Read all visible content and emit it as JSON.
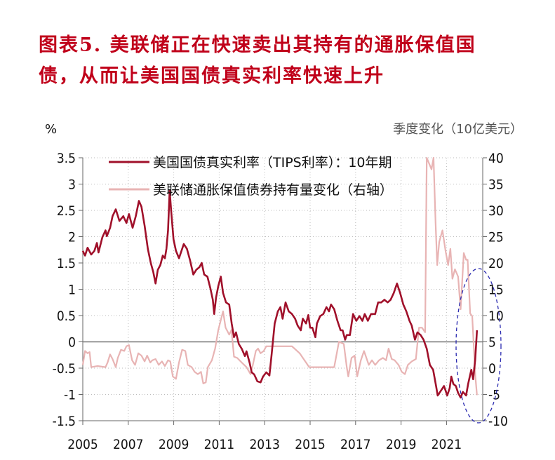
{
  "title": {
    "line1": "图表5.  美联储正在快速卖出其持有的通胀保值国",
    "line2": "债，从而让美国国债真实利率快速上升"
  },
  "chart_data": {
    "type": "line",
    "left_unit": "%",
    "right_unit": "季度变化（10亿美元）",
    "xlim": [
      2005,
      2022.6
    ],
    "ylim_left": [
      -1.5,
      3.5
    ],
    "ylim_right": [
      -10,
      40
    ],
    "x_ticks": [
      "2005",
      "2007",
      "2009",
      "2011",
      "2013",
      "2015",
      "2017",
      "2019",
      "2021"
    ],
    "y_ticks_left": [
      "3.5",
      "3",
      "2.5",
      "2",
      "1.5",
      "1",
      "0.5",
      "0",
      "-0.5",
      "-1",
      "-1.5"
    ],
    "y_ticks_right": [
      "40",
      "35",
      "30",
      "25",
      "20",
      "15",
      "10",
      "5",
      "0",
      "-5",
      "-10"
    ],
    "grid": true,
    "legend_placement": "top",
    "annotation": "dashed blue ellipse highlighting 2022",
    "series": [
      {
        "name": "美国国债真实利率（TIPS利率）：10年期",
        "axis": "left",
        "color": "#a0102a",
        "points": [
          [
            2005,
            1.73
          ],
          [
            2005.1,
            1.64
          ],
          [
            2005.21,
            1.79
          ],
          [
            2005.37,
            1.66
          ],
          [
            2005.51,
            1.73
          ],
          [
            2005.62,
            1.88
          ],
          [
            2005.69,
            1.7
          ],
          [
            2005.86,
            1.99
          ],
          [
            2006,
            2.12
          ],
          [
            2006.06,
            2.01
          ],
          [
            2006.2,
            2.17
          ],
          [
            2006.31,
            2.39
          ],
          [
            2006.45,
            2.52
          ],
          [
            2006.61,
            2.3
          ],
          [
            2006.78,
            2.39
          ],
          [
            2006.92,
            2.26
          ],
          [
            2007.03,
            2.43
          ],
          [
            2007.19,
            2.17
          ],
          [
            2007.33,
            2.39
          ],
          [
            2007.47,
            2.68
          ],
          [
            2007.58,
            2.57
          ],
          [
            2007.72,
            2.21
          ],
          [
            2007.86,
            1.77
          ],
          [
            2007.99,
            1.5
          ],
          [
            2008.1,
            1.33
          ],
          [
            2008.2,
            1.11
          ],
          [
            2008.3,
            1.37
          ],
          [
            2008.41,
            1.46
          ],
          [
            2008.52,
            1.64
          ],
          [
            2008.61,
            1.59
          ],
          [
            2008.68,
            1.77
          ],
          [
            2008.75,
            2.12
          ],
          [
            2008.82,
            2.88
          ],
          [
            2008.89,
            2.48
          ],
          [
            2008.99,
            1.95
          ],
          [
            2009.1,
            1.73
          ],
          [
            2009.23,
            1.59
          ],
          [
            2009.44,
            1.86
          ],
          [
            2009.58,
            1.77
          ],
          [
            2009.72,
            1.55
          ],
          [
            2009.86,
            1.28
          ],
          [
            2009.99,
            1.37
          ],
          [
            2010.13,
            1.42
          ],
          [
            2010.23,
            1.5
          ],
          [
            2010.34,
            1.28
          ],
          [
            2010.48,
            1.24
          ],
          [
            2010.61,
            1.02
          ],
          [
            2010.72,
            0.8
          ],
          [
            2010.78,
            0.53
          ],
          [
            2010.86,
            0.84
          ],
          [
            2010.96,
            1.06
          ],
          [
            2011.07,
            1.24
          ],
          [
            2011.17,
            0.93
          ],
          [
            2011.3,
            0.75
          ],
          [
            2011.44,
            0.71
          ],
          [
            2011.55,
            0.35
          ],
          [
            2011.65,
            0.09
          ],
          [
            2011.74,
            0.18
          ],
          [
            2011.86,
            -0.04
          ],
          [
            2011.99,
            -0.13
          ],
          [
            2012.13,
            -0.27
          ],
          [
            2012.2,
            -0.18
          ],
          [
            2012.34,
            -0.4
          ],
          [
            2012.43,
            -0.58
          ],
          [
            2012.54,
            -0.62
          ],
          [
            2012.68,
            -0.75
          ],
          [
            2012.82,
            -0.77
          ],
          [
            2012.93,
            -0.66
          ],
          [
            2013.07,
            -0.58
          ],
          [
            2013.21,
            -0.64
          ],
          [
            2013.3,
            -0.27
          ],
          [
            2013.44,
            0.35
          ],
          [
            2013.58,
            0.58
          ],
          [
            2013.69,
            0.66
          ],
          [
            2013.79,
            0.44
          ],
          [
            2013.92,
            0.75
          ],
          [
            2014.06,
            0.58
          ],
          [
            2014.2,
            0.53
          ],
          [
            2014.34,
            0.44
          ],
          [
            2014.45,
            0.31
          ],
          [
            2014.59,
            0.22
          ],
          [
            2014.68,
            0.44
          ],
          [
            2014.82,
            0.35
          ],
          [
            2014.92,
            0.51
          ],
          [
            2015,
            0.27
          ],
          [
            2015.1,
            0.27
          ],
          [
            2015.23,
            0.09
          ],
          [
            2015.3,
            0.35
          ],
          [
            2015.44,
            0.49
          ],
          [
            2015.58,
            0.53
          ],
          [
            2015.72,
            0.66
          ],
          [
            2015.83,
            0.58
          ],
          [
            2015.92,
            0.71
          ],
          [
            2016.06,
            0.62
          ],
          [
            2016.2,
            0.4
          ],
          [
            2016.34,
            0.22
          ],
          [
            2016.43,
            0.22
          ],
          [
            2016.54,
            0.04
          ],
          [
            2016.61,
            0.13
          ],
          [
            2016.75,
            0.13
          ],
          [
            2016.89,
            0.53
          ],
          [
            2017.03,
            0.4
          ],
          [
            2017.17,
            0.49
          ],
          [
            2017.3,
            0.4
          ],
          [
            2017.4,
            0.53
          ],
          [
            2017.54,
            0.4
          ],
          [
            2017.68,
            0.53
          ],
          [
            2017.86,
            0.53
          ],
          [
            2017.99,
            0.75
          ],
          [
            2018.13,
            0.75
          ],
          [
            2018.27,
            0.8
          ],
          [
            2018.41,
            0.75
          ],
          [
            2018.54,
            0.8
          ],
          [
            2018.68,
            0.93
          ],
          [
            2018.82,
            1.11
          ],
          [
            2018.96,
            0.93
          ],
          [
            2019.1,
            0.71
          ],
          [
            2019.23,
            0.58
          ],
          [
            2019.37,
            0.4
          ],
          [
            2019.47,
            0.31
          ],
          [
            2019.61,
            0.04
          ],
          [
            2019.72,
            0.18
          ],
          [
            2019.86,
            0.13
          ],
          [
            2019.99,
            0.04
          ],
          [
            2020.13,
            -0.13
          ],
          [
            2020.27,
            -0.44
          ],
          [
            2020.41,
            -0.53
          ],
          [
            2020.54,
            -0.84
          ],
          [
            2020.61,
            -1.02
          ],
          [
            2020.75,
            -0.93
          ],
          [
            2020.89,
            -0.84
          ],
          [
            2021.03,
            -1.02
          ],
          [
            2021.14,
            -0.88
          ],
          [
            2021.21,
            -0.66
          ],
          [
            2021.3,
            -0.8
          ],
          [
            2021.41,
            -0.84
          ],
          [
            2021.51,
            -0.97
          ],
          [
            2021.62,
            -1.06
          ],
          [
            2021.72,
            -0.95
          ],
          [
            2021.86,
            -1.02
          ],
          [
            2021.95,
            -0.8
          ],
          [
            2022.09,
            -0.53
          ],
          [
            2022.17,
            -0.71
          ],
          [
            2022.26,
            -0.35
          ],
          [
            2022.34,
            0.22
          ]
        ]
      },
      {
        "name": "美联储通胀保值债券持有量变化（右轴）",
        "axis": "right",
        "color": "#e8b4b4",
        "points": [
          [
            2005,
            0.62
          ],
          [
            2005.1,
            3.27
          ],
          [
            2005.21,
            2.83
          ],
          [
            2005.3,
            3.05
          ],
          [
            2005.37,
            0.18
          ],
          [
            2005.65,
            0.4
          ],
          [
            2006,
            0.18
          ],
          [
            2006.09,
            1.06
          ],
          [
            2006.2,
            2.61
          ],
          [
            2006.31,
            1.73
          ],
          [
            2006.45,
            0.18
          ],
          [
            2006.54,
            1.95
          ],
          [
            2006.68,
            3.5
          ],
          [
            2006.82,
            3.27
          ],
          [
            2006.92,
            4.16
          ],
          [
            2007.03,
            4.38
          ],
          [
            2007.17,
            1.5
          ],
          [
            2007.3,
            0.62
          ],
          [
            2007.44,
            2.83
          ],
          [
            2007.58,
            2.39
          ],
          [
            2007.72,
            1.28
          ],
          [
            2007.83,
            2.39
          ],
          [
            2007.97,
            1.06
          ],
          [
            2008.06,
            1.5
          ],
          [
            2008.2,
            1.73
          ],
          [
            2008.34,
            0.62
          ],
          [
            2008.48,
            1.28
          ],
          [
            2008.61,
            0.4
          ],
          [
            2008.75,
            1.5
          ],
          [
            2008.85,
            1.28
          ],
          [
            2008.96,
            -1.59
          ],
          [
            2009.1,
            -2.04
          ],
          [
            2009.23,
            1.06
          ],
          [
            2009.37,
            3.5
          ],
          [
            2009.51,
            3.27
          ],
          [
            2009.62,
            0.62
          ],
          [
            2009.79,
            0.18
          ],
          [
            2009.92,
            -0.71
          ],
          [
            2010.06,
            -1.15
          ],
          [
            2010.2,
            -0.71
          ],
          [
            2010.3,
            -2.92
          ],
          [
            2010.41,
            -2.7
          ],
          [
            2010.5,
            0.18
          ],
          [
            2010.68,
            1.5
          ],
          [
            2010.82,
            3.72
          ],
          [
            2010.96,
            7.26
          ],
          [
            2011.17,
            10.8
          ],
          [
            2011.28,
            7.7
          ],
          [
            2011.44,
            6.37
          ],
          [
            2011.54,
            7.26
          ],
          [
            2011.65,
            2.17
          ],
          [
            2011.79,
            1.95
          ],
          [
            2011.99,
            1.06
          ],
          [
            2012.2,
            0.18
          ],
          [
            2012.38,
            -1.15
          ],
          [
            2012.48,
            0.62
          ],
          [
            2012.61,
            3.27
          ],
          [
            2012.71,
            3.72
          ],
          [
            2012.82,
            2.83
          ],
          [
            2012.96,
            3.27
          ],
          [
            2013.07,
            4.16
          ],
          [
            2014.2,
            4.16
          ],
          [
            2014.54,
            2.83
          ],
          [
            2014.96,
            0.18
          ],
          [
            2016.06,
            0.18
          ],
          [
            2016.27,
            5.04
          ],
          [
            2016.48,
            4.6
          ],
          [
            2016.61,
            0.18
          ],
          [
            2016.68,
            -1.59
          ],
          [
            2016.82,
            1.95
          ],
          [
            2016.96,
            2.39
          ],
          [
            2017.07,
            -1.59
          ],
          [
            2017.23,
            1.5
          ],
          [
            2017.37,
            3.27
          ],
          [
            2017.58,
            0.62
          ],
          [
            2017.72,
            1.5
          ],
          [
            2017.86,
            0.62
          ],
          [
            2018.03,
            1.5
          ],
          [
            2018.2,
            1.95
          ],
          [
            2018.34,
            1.5
          ],
          [
            2018.45,
            3.72
          ],
          [
            2018.59,
            1.73
          ],
          [
            2018.72,
            1.5
          ],
          [
            2018.89,
            0.62
          ],
          [
            2019.03,
            -0.71
          ],
          [
            2019.17,
            -1.15
          ],
          [
            2019.3,
            0.62
          ],
          [
            2019.47,
            1.28
          ],
          [
            2019.65,
            1.73
          ],
          [
            2019.79,
            7.7
          ],
          [
            2019.92,
            7.7
          ],
          [
            2020.06,
            6.81
          ],
          [
            2020.13,
            40
          ],
          [
            2020.34,
            37.8
          ],
          [
            2020.43,
            40
          ],
          [
            2020.52,
            27.6
          ],
          [
            2020.59,
            19.6
          ],
          [
            2020.68,
            24
          ],
          [
            2020.82,
            26.2
          ],
          [
            2020.96,
            22.2
          ],
          [
            2021.07,
            19.6
          ],
          [
            2021.17,
            22.7
          ],
          [
            2021.26,
            17
          ],
          [
            2021.37,
            18.8
          ],
          [
            2021.51,
            17.4
          ],
          [
            2021.62,
            11.2
          ],
          [
            2021.76,
            21.9
          ],
          [
            2021.86,
            20.6
          ],
          [
            2021.93,
            20.6
          ],
          [
            2022.04,
            10.4
          ],
          [
            2022.13,
            9.9
          ],
          [
            2022.27,
            -1.59
          ],
          [
            2022.34,
            -5.13
          ]
        ]
      }
    ]
  }
}
